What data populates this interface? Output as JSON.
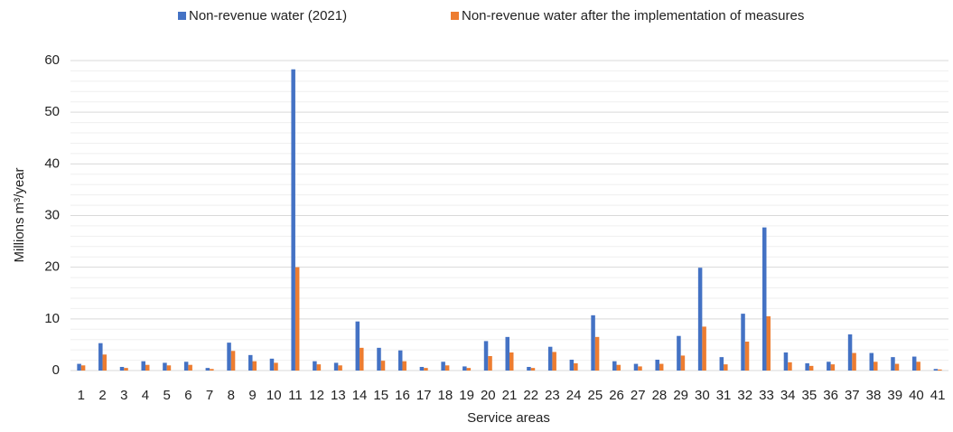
{
  "chart_data": {
    "type": "bar",
    "categories": [
      "1",
      "2",
      "3",
      "4",
      "5",
      "6",
      "7",
      "8",
      "9",
      "10",
      "11",
      "12",
      "13",
      "14",
      "15",
      "16",
      "17",
      "18",
      "19",
      "20",
      "21",
      "22",
      "23",
      "24",
      "25",
      "26",
      "27",
      "28",
      "29",
      "30",
      "31",
      "32",
      "33",
      "34",
      "35",
      "36",
      "37",
      "38",
      "39",
      "40",
      "41"
    ],
    "series": [
      {
        "name": "Non-revenue water (2021)",
        "color": "#4472c4",
        "values": [
          1.3,
          5.3,
          0.7,
          1.8,
          1.5,
          1.7,
          0.5,
          5.4,
          3.0,
          2.3,
          58.3,
          1.8,
          1.5,
          9.5,
          4.4,
          3.9,
          0.7,
          1.7,
          0.8,
          5.7,
          6.5,
          0.7,
          4.6,
          2.1,
          10.7,
          1.8,
          1.3,
          2.1,
          6.7,
          19.9,
          2.6,
          11.0,
          27.7,
          3.5,
          1.4,
          1.7,
          7.0,
          3.4,
          2.6,
          2.7,
          0.3
        ]
      },
      {
        "name": "Non-revenue water after the implementation of measures",
        "color": "#ed7d31",
        "values": [
          1.0,
          3.1,
          0.5,
          1.1,
          1.0,
          1.1,
          0.3,
          3.8,
          1.8,
          1.5,
          20.0,
          1.2,
          1.0,
          4.4,
          1.9,
          1.8,
          0.5,
          1.0,
          0.5,
          2.8,
          3.5,
          0.5,
          3.6,
          1.4,
          6.5,
          1.1,
          0.8,
          1.3,
          2.9,
          8.5,
          1.2,
          5.6,
          10.5,
          1.6,
          0.9,
          1.2,
          3.4,
          1.7,
          1.3,
          1.7,
          0.2
        ]
      }
    ],
    "ylabel": "Millions m³/year",
    "xlabel": "Service areas",
    "ylim": [
      0,
      60
    ],
    "yticks": [
      0,
      10,
      20,
      30,
      40,
      50,
      60
    ],
    "minor_yticks": [
      2,
      4,
      6,
      8,
      12,
      14,
      16,
      18,
      22,
      24,
      26,
      28,
      32,
      34,
      36,
      38,
      42,
      44,
      46,
      48,
      52,
      54,
      56,
      58
    ],
    "grid": true,
    "legend": "top"
  }
}
